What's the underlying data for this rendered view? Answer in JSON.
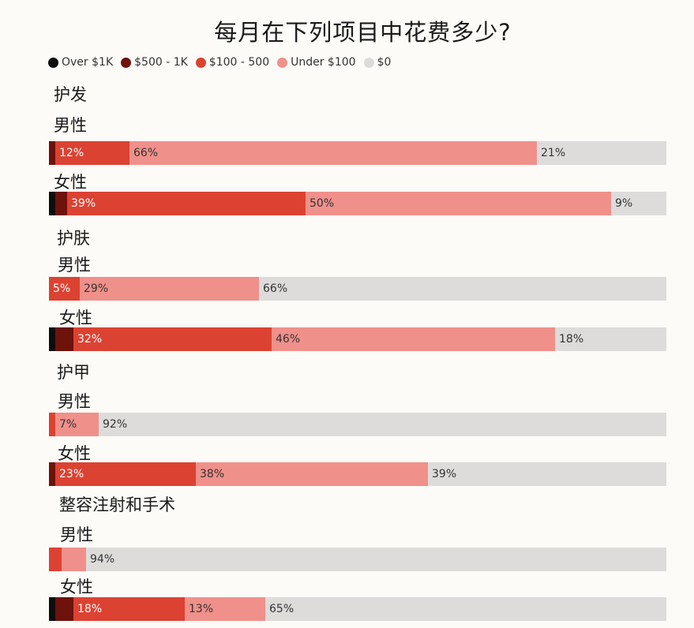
{
  "title": "每月在下列项目中花费多少?",
  "legend": [
    {
      "label": "Over $1K",
      "color": "#0d0d0d"
    },
    {
      "label": "$500 - 1K",
      "color": "#6e120c"
    },
    {
      "label": "$100 - 500",
      "color": "#dc4232"
    },
    {
      "label": "Under $100",
      "color": "#f0908a"
    },
    {
      "label": "$0",
      "color": "#dddcdb"
    }
  ],
  "chart_data": {
    "type": "bar",
    "orientation": "horizontal",
    "stacked": true,
    "title": "每月在下列项目中花费多少?",
    "series_names": [
      "Over $1K",
      "$500 - 1K",
      "$100 - 500",
      "Under $100",
      "$0"
    ],
    "xlim": [
      0,
      100
    ],
    "legend_position": "top-left",
    "categories": [
      {
        "name": "护发",
        "groups": [
          {
            "name": "男性",
            "values": [
              0,
              1,
              12,
              66,
              21
            ],
            "labels": [
              "",
              "",
              "12%",
              "66%",
              "21%"
            ]
          },
          {
            "name": "女性",
            "values": [
              1,
              2,
              39,
              50,
              9
            ],
            "labels": [
              "",
              "",
              "39%",
              "50%",
              "9%"
            ]
          }
        ]
      },
      {
        "name": "护肤",
        "groups": [
          {
            "name": "男性",
            "values": [
              0,
              0,
              5,
              29,
              66
            ],
            "labels": [
              "",
              "",
              "5%",
              "29%",
              "66%"
            ]
          },
          {
            "name": "女性",
            "values": [
              1,
              3,
              32,
              46,
              18
            ],
            "labels": [
              "",
              "",
              "32%",
              "46%",
              "18%"
            ]
          }
        ]
      },
      {
        "name": "护甲",
        "groups": [
          {
            "name": "男性",
            "values": [
              0,
              0,
              1,
              7,
              92
            ],
            "labels": [
              "",
              "",
              "",
              "7%",
              "92%"
            ]
          },
          {
            "name": "女性",
            "values": [
              0,
              1,
              23,
              38,
              39
            ],
            "labels": [
              "",
              "",
              "23%",
              "38%",
              "39%"
            ]
          }
        ]
      },
      {
        "name": "整容注射和手术",
        "groups": [
          {
            "name": "男性",
            "values": [
              0,
              0,
              2,
              4,
              94
            ],
            "labels": [
              "",
              "",
              "",
              "",
              "94%"
            ]
          },
          {
            "name": "女性",
            "values": [
              1,
              3,
              18,
              13,
              65
            ],
            "labels": [
              "",
              "",
              "18%",
              "13%",
              "65%"
            ]
          }
        ]
      }
    ]
  }
}
